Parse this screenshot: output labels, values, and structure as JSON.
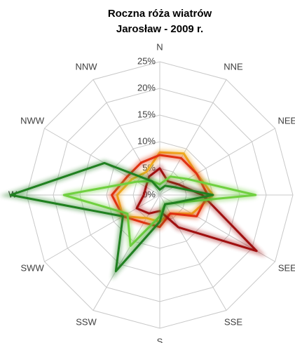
{
  "chart_data": {
    "type": "radar",
    "title": "Roczna róża wiatrów",
    "subtitle": "Jarosław - 2009 r.",
    "categories": [
      "N",
      "NNE",
      "NEE",
      null,
      "SEE",
      "SSE",
      "S",
      "SSW",
      "SWW",
      "W",
      "NWW",
      "NNW"
    ],
    "ylim": [
      0,
      25
    ],
    "yticks": [
      {
        "value": 0,
        "label": "0%"
      },
      {
        "value": 5,
        "label": "5%"
      },
      {
        "value": 10,
        "label": "10%"
      },
      {
        "value": 15,
        "label": "15%"
      },
      {
        "value": 20,
        "label": "20%"
      },
      {
        "value": 25,
        "label": "25%"
      }
    ],
    "grid": true,
    "series": [
      {
        "color": "#f0b020",
        "values": [
          8,
          9,
          8,
          10,
          7,
          4,
          5,
          5,
          8,
          8,
          6,
          5
        ]
      },
      {
        "color": "#e03010",
        "values": [
          7.5,
          8,
          8,
          9,
          8,
          4,
          6,
          6,
          8,
          9,
          7,
          7
        ]
      },
      {
        "color": "#a01010",
        "values": [
          5,
          3,
          4,
          8,
          21,
          7,
          3,
          4,
          5,
          3,
          3,
          4
        ]
      },
      {
        "color": "#70d040",
        "values": [
          2,
          4,
          6,
          18,
          3,
          2,
          4,
          11,
          7,
          18,
          5,
          3
        ]
      },
      {
        "color": "#208020",
        "values": [
          1,
          2,
          3,
          10,
          3,
          2,
          5,
          16.5,
          8,
          28,
          12,
          3
        ]
      }
    ]
  }
}
